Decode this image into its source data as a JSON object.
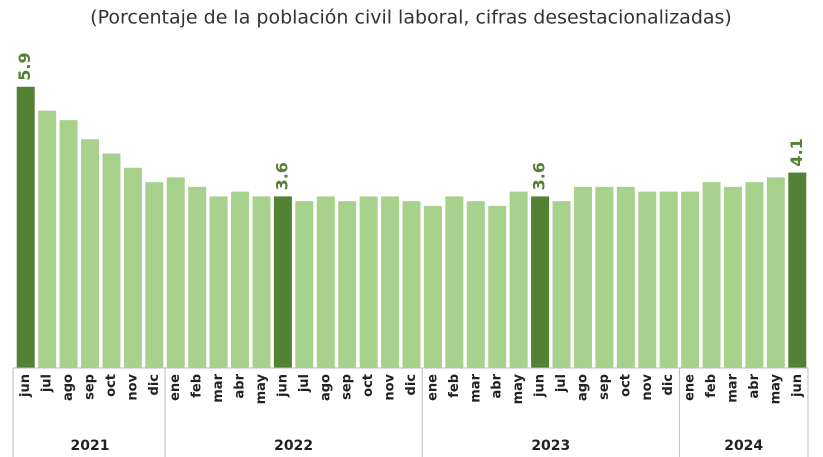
{
  "chart_data": {
    "type": "bar",
    "title": "(Porcentaje de la población civil laboral, cifras desestacionalizadas)",
    "groups": [
      {
        "name": "2021",
        "categories": [
          "jun",
          "jul",
          "ago",
          "sep",
          "oct",
          "nov",
          "dic"
        ]
      },
      {
        "name": "2022",
        "categories": [
          "ene",
          "feb",
          "mar",
          "abr",
          "may",
          "jun",
          "jul",
          "ago",
          "sep",
          "oct",
          "nov",
          "dic"
        ]
      },
      {
        "name": "2023",
        "categories": [
          "ene",
          "feb",
          "mar",
          "abr",
          "may",
          "jun",
          "jul",
          "ago",
          "sep",
          "oct",
          "nov",
          "dic"
        ]
      },
      {
        "name": "2024",
        "categories": [
          "ene",
          "feb",
          "mar",
          "abr",
          "may",
          "jun"
        ]
      }
    ],
    "values": [
      5.9,
      5.4,
      5.2,
      4.8,
      4.5,
      4.2,
      3.9,
      4.0,
      3.8,
      3.6,
      3.7,
      3.6,
      3.6,
      3.5,
      3.6,
      3.5,
      3.6,
      3.6,
      3.5,
      3.4,
      3.6,
      3.5,
      3.4,
      3.7,
      3.6,
      3.5,
      3.8,
      3.8,
      3.8,
      3.7,
      3.7,
      3.7,
      3.9,
      3.8,
      3.9,
      4.0,
      4.1
    ],
    "color": "#a9d18e",
    "colors": [
      "#548235",
      "#a9d18e",
      "#a9d18e",
      "#a9d18e",
      "#a9d18e",
      "#a9d18e",
      "#a9d18e",
      "#a9d18e",
      "#a9d18e",
      "#a9d18e",
      "#a9d18e",
      "#a9d18e",
      "#548235",
      "#a9d18e",
      "#a9d18e",
      "#a9d18e",
      "#a9d18e",
      "#a9d18e",
      "#a9d18e",
      "#a9d18e",
      "#a9d18e",
      "#a9d18e",
      "#a9d18e",
      "#a9d18e",
      "#548235",
      "#a9d18e",
      "#a9d18e",
      "#a9d18e",
      "#a9d18e",
      "#a9d18e",
      "#a9d18e",
      "#a9d18e",
      "#a9d18e",
      "#a9d18e",
      "#a9d18e",
      "#a9d18e",
      "#548235"
    ],
    "ylim": [
      0,
      6
    ]
  }
}
